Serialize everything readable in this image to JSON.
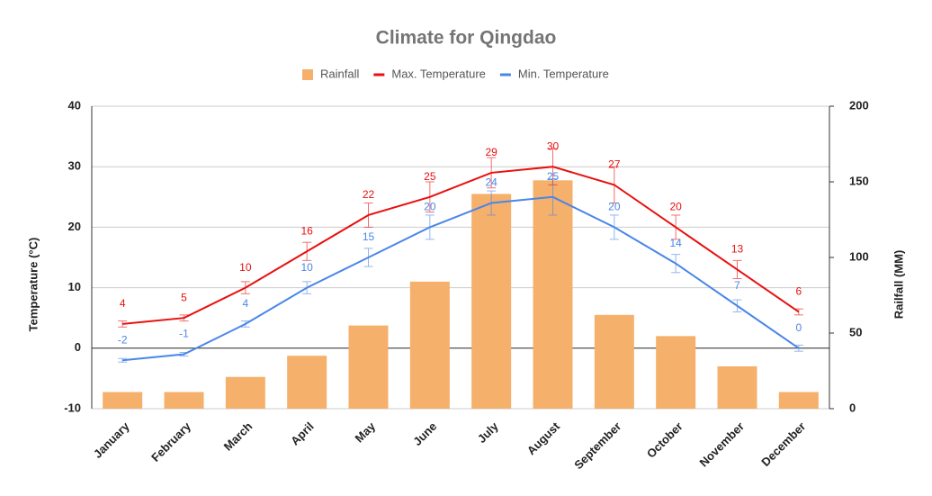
{
  "chart_data": {
    "type": "combo",
    "title": "Climate for Qingdao",
    "categories": [
      "January",
      "February",
      "March",
      "April",
      "May",
      "June",
      "July",
      "August",
      "September",
      "October",
      "November",
      "December"
    ],
    "y_label": "Temperature (°C)",
    "y2_label": "Railfall (MM)",
    "ylim": [
      -10,
      40
    ],
    "yticks": [
      -10,
      0,
      10,
      20,
      30,
      40
    ],
    "y2lim": [
      0,
      200
    ],
    "y2ticks": [
      0,
      50,
      100,
      150,
      200
    ],
    "grid": true,
    "legend": "top",
    "series": [
      {
        "name": "Rainfall",
        "type": "bar",
        "axis": "y2",
        "color": "#f5b06b",
        "values": [
          11,
          11,
          21,
          35,
          55,
          84,
          142,
          151,
          62,
          48,
          28,
          11
        ]
      },
      {
        "name": "Max. Temperature",
        "type": "line",
        "color": "#e8100f",
        "values": [
          4,
          5,
          10,
          16,
          22,
          25,
          29,
          30,
          27,
          20,
          13,
          6
        ],
        "errors": [
          0.5,
          0.5,
          1,
          1.5,
          2,
          2.5,
          2.5,
          3,
          3,
          2,
          1.5,
          0.5
        ]
      },
      {
        "name": "Min. Temperature",
        "type": "line",
        "color": "#4a86e8",
        "values": [
          -2,
          -1,
          4,
          10,
          15,
          20,
          24,
          25,
          20,
          14,
          7,
          0
        ],
        "errors": [
          0.3,
          0.3,
          0.5,
          1,
          1.5,
          2,
          2,
          3,
          2,
          1.5,
          1,
          0.5
        ]
      }
    ]
  }
}
